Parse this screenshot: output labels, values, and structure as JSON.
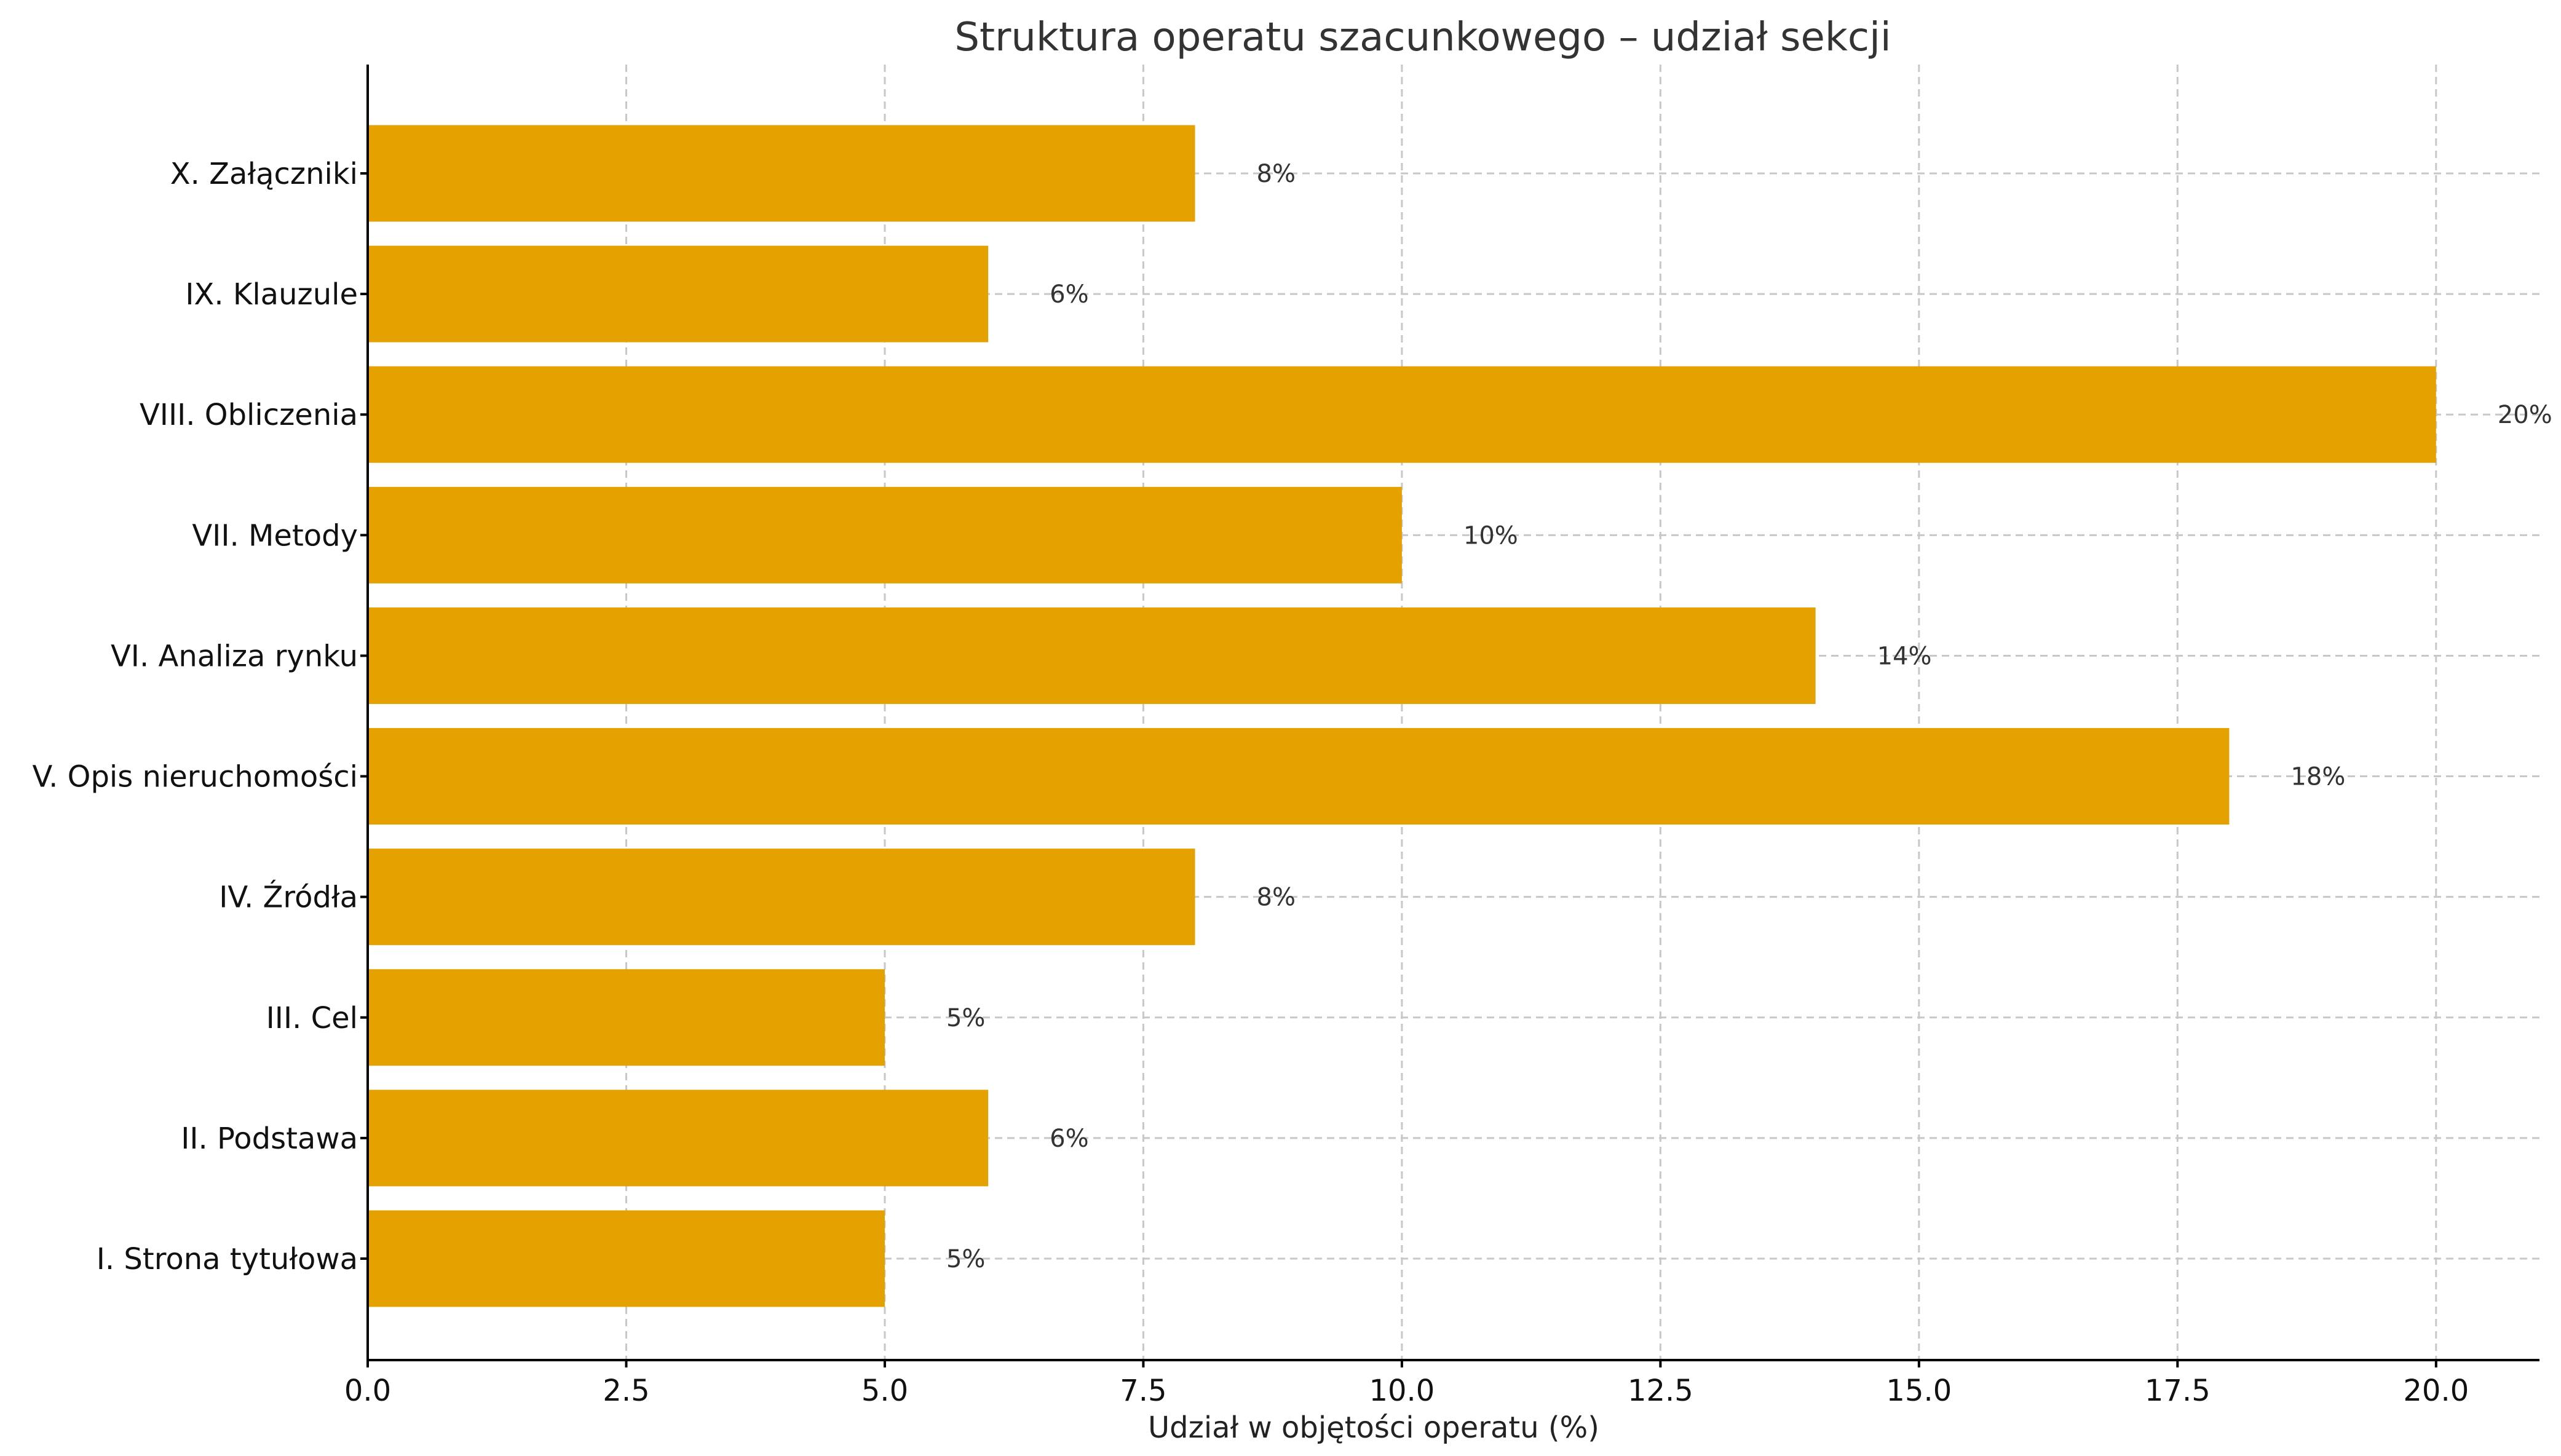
{
  "chart_data": {
    "type": "bar",
    "orientation": "horizontal",
    "title": "Struktura operatu szacunkowego – udział sekcji",
    "xlabel": "Udział w objętości operatu (%)",
    "ylabel": "",
    "categories": [
      "I. Strona tytułowa",
      "II. Podstawa",
      "III. Cel",
      "IV. Źródła",
      "V. Opis nieruchomości",
      "VI. Analiza rynku",
      "VII. Metody",
      "VIII. Obliczenia",
      "IX. Klauzule",
      "X. Załączniki"
    ],
    "values": [
      5,
      6,
      5,
      8,
      18,
      14,
      10,
      20,
      6,
      8
    ],
    "data_labels": [
      "5%",
      "6%",
      "5%",
      "8%",
      "18%",
      "14%",
      "10%",
      "20%",
      "6%",
      "8%"
    ],
    "xlim": [
      0,
      21
    ],
    "xticks": [
      0.0,
      2.5,
      5.0,
      7.5,
      10.0,
      12.5,
      15.0,
      17.5,
      20.0
    ],
    "xtick_labels": [
      "0.0",
      "2.5",
      "5.0",
      "7.5",
      "10.0",
      "12.5",
      "15.0",
      "17.5",
      "20.0"
    ],
    "grid": true,
    "bar_color": "#E5A100",
    "legend": "none"
  }
}
